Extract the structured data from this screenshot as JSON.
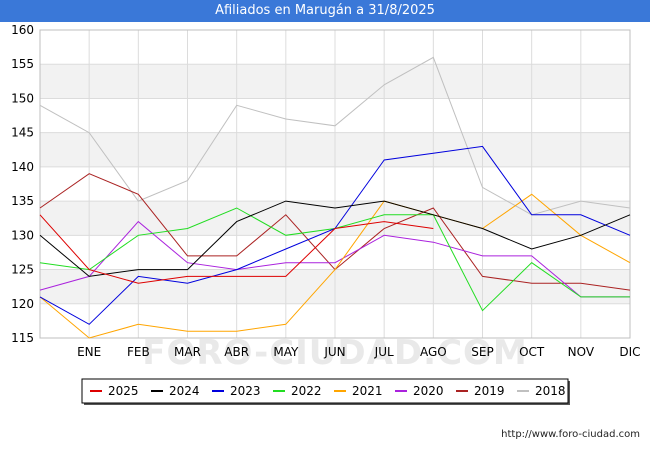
{
  "chart_data": {
    "type": "line",
    "title": "Afiliados en Marugán a 31/8/2025",
    "categories": [
      "",
      "ENE",
      "FEB",
      "MAR",
      "ABR",
      "MAY",
      "JUN",
      "JUL",
      "AGO",
      "SEP",
      "OCT",
      "NOV",
      "DIC"
    ],
    "ylim": [
      115,
      160
    ],
    "yticks": [
      115,
      120,
      125,
      130,
      135,
      140,
      145,
      150,
      155,
      160
    ],
    "series": [
      {
        "name": "2025",
        "color": "#dd0000",
        "values": [
          133,
          125,
          123,
          124,
          124,
          124,
          131,
          132,
          131,
          null,
          null,
          null,
          null
        ]
      },
      {
        "name": "2024",
        "color": "#000000",
        "values": [
          130,
          124,
          125,
          125,
          132,
          135,
          134,
          135,
          133,
          131,
          128,
          130,
          133
        ]
      },
      {
        "name": "2023",
        "color": "#0000dd",
        "values": [
          121,
          117,
          124,
          123,
          125,
          128,
          131,
          141,
          142,
          143,
          133,
          133,
          130
        ]
      },
      {
        "name": "2022",
        "color": "#22dd22",
        "values": [
          126,
          125,
          130,
          131,
          134,
          130,
          131,
          133,
          133,
          119,
          126,
          121,
          121
        ]
      },
      {
        "name": "2021",
        "color": "#ffa500",
        "values": [
          121,
          115,
          117,
          116,
          116,
          117,
          125,
          135,
          133,
          131,
          136,
          130,
          126
        ]
      },
      {
        "name": "2020",
        "color": "#aa22dd",
        "values": [
          122,
          124,
          132,
          126,
          125,
          126,
          126,
          130,
          129,
          127,
          127,
          121,
          121
        ]
      },
      {
        "name": "2019",
        "color": "#aa2222",
        "values": [
          134,
          139,
          136,
          127,
          127,
          133,
          125,
          131,
          134,
          124,
          123,
          123,
          122
        ]
      },
      {
        "name": "2018",
        "color": "#c0c0c0",
        "values": [
          149,
          145,
          135,
          138,
          149,
          147,
          146,
          152,
          156,
          137,
          133,
          135,
          134
        ]
      }
    ]
  },
  "watermark": "FORO-CIUDAD.COM",
  "footer": {
    "url": "http://www.foro-ciudad.com"
  }
}
